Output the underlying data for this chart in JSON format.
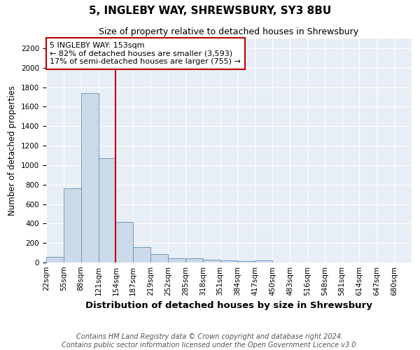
{
  "title": "5, INGLEBY WAY, SHREWSBURY, SY3 8BU",
  "subtitle": "Size of property relative to detached houses in Shrewsbury",
  "xlabel": "Distribution of detached houses by size in Shrewsbury",
  "ylabel": "Number of detached properties",
  "bar_values": [
    60,
    760,
    1740,
    1070,
    420,
    155,
    85,
    45,
    45,
    30,
    20,
    15,
    20
  ],
  "all_tick_labels": [
    "22sqm",
    "55sqm",
    "88sqm",
    "121sqm",
    "154sqm",
    "187sqm",
    "219sqm",
    "252sqm",
    "285sqm",
    "318sqm",
    "351sqm",
    "384sqm",
    "417sqm",
    "450sqm",
    "483sqm",
    "516sqm",
    "548sqm",
    "581sqm",
    "614sqm",
    "647sqm",
    "680sqm"
  ],
  "bar_color": "#ccd9e8",
  "bar_edge_color": "#6090b8",
  "property_line_color": "#bb0000",
  "annotation_text": "5 INGLEBY WAY: 153sqm\n← 82% of detached houses are smaller (3,593)\n17% of semi-detached houses are larger (755) →",
  "annotation_box_color": "#ffffff",
  "annotation_box_edge_color": "#bb0000",
  "ylim": [
    0,
    2300
  ],
  "yticks": [
    0,
    200,
    400,
    600,
    800,
    1000,
    1200,
    1400,
    1600,
    1800,
    2000,
    2200
  ],
  "plot_bg_color": "#e8eef5",
  "footer_text": "Contains HM Land Registry data © Crown copyright and database right 2024.\nContains public sector information licensed under the Open Government Licence v3.0.",
  "title_fontsize": 11,
  "subtitle_fontsize": 9,
  "tick_fontsize": 7.5,
  "ylabel_fontsize": 8.5,
  "xlabel_fontsize": 9.5,
  "annotation_fontsize": 8,
  "footer_fontsize": 7
}
